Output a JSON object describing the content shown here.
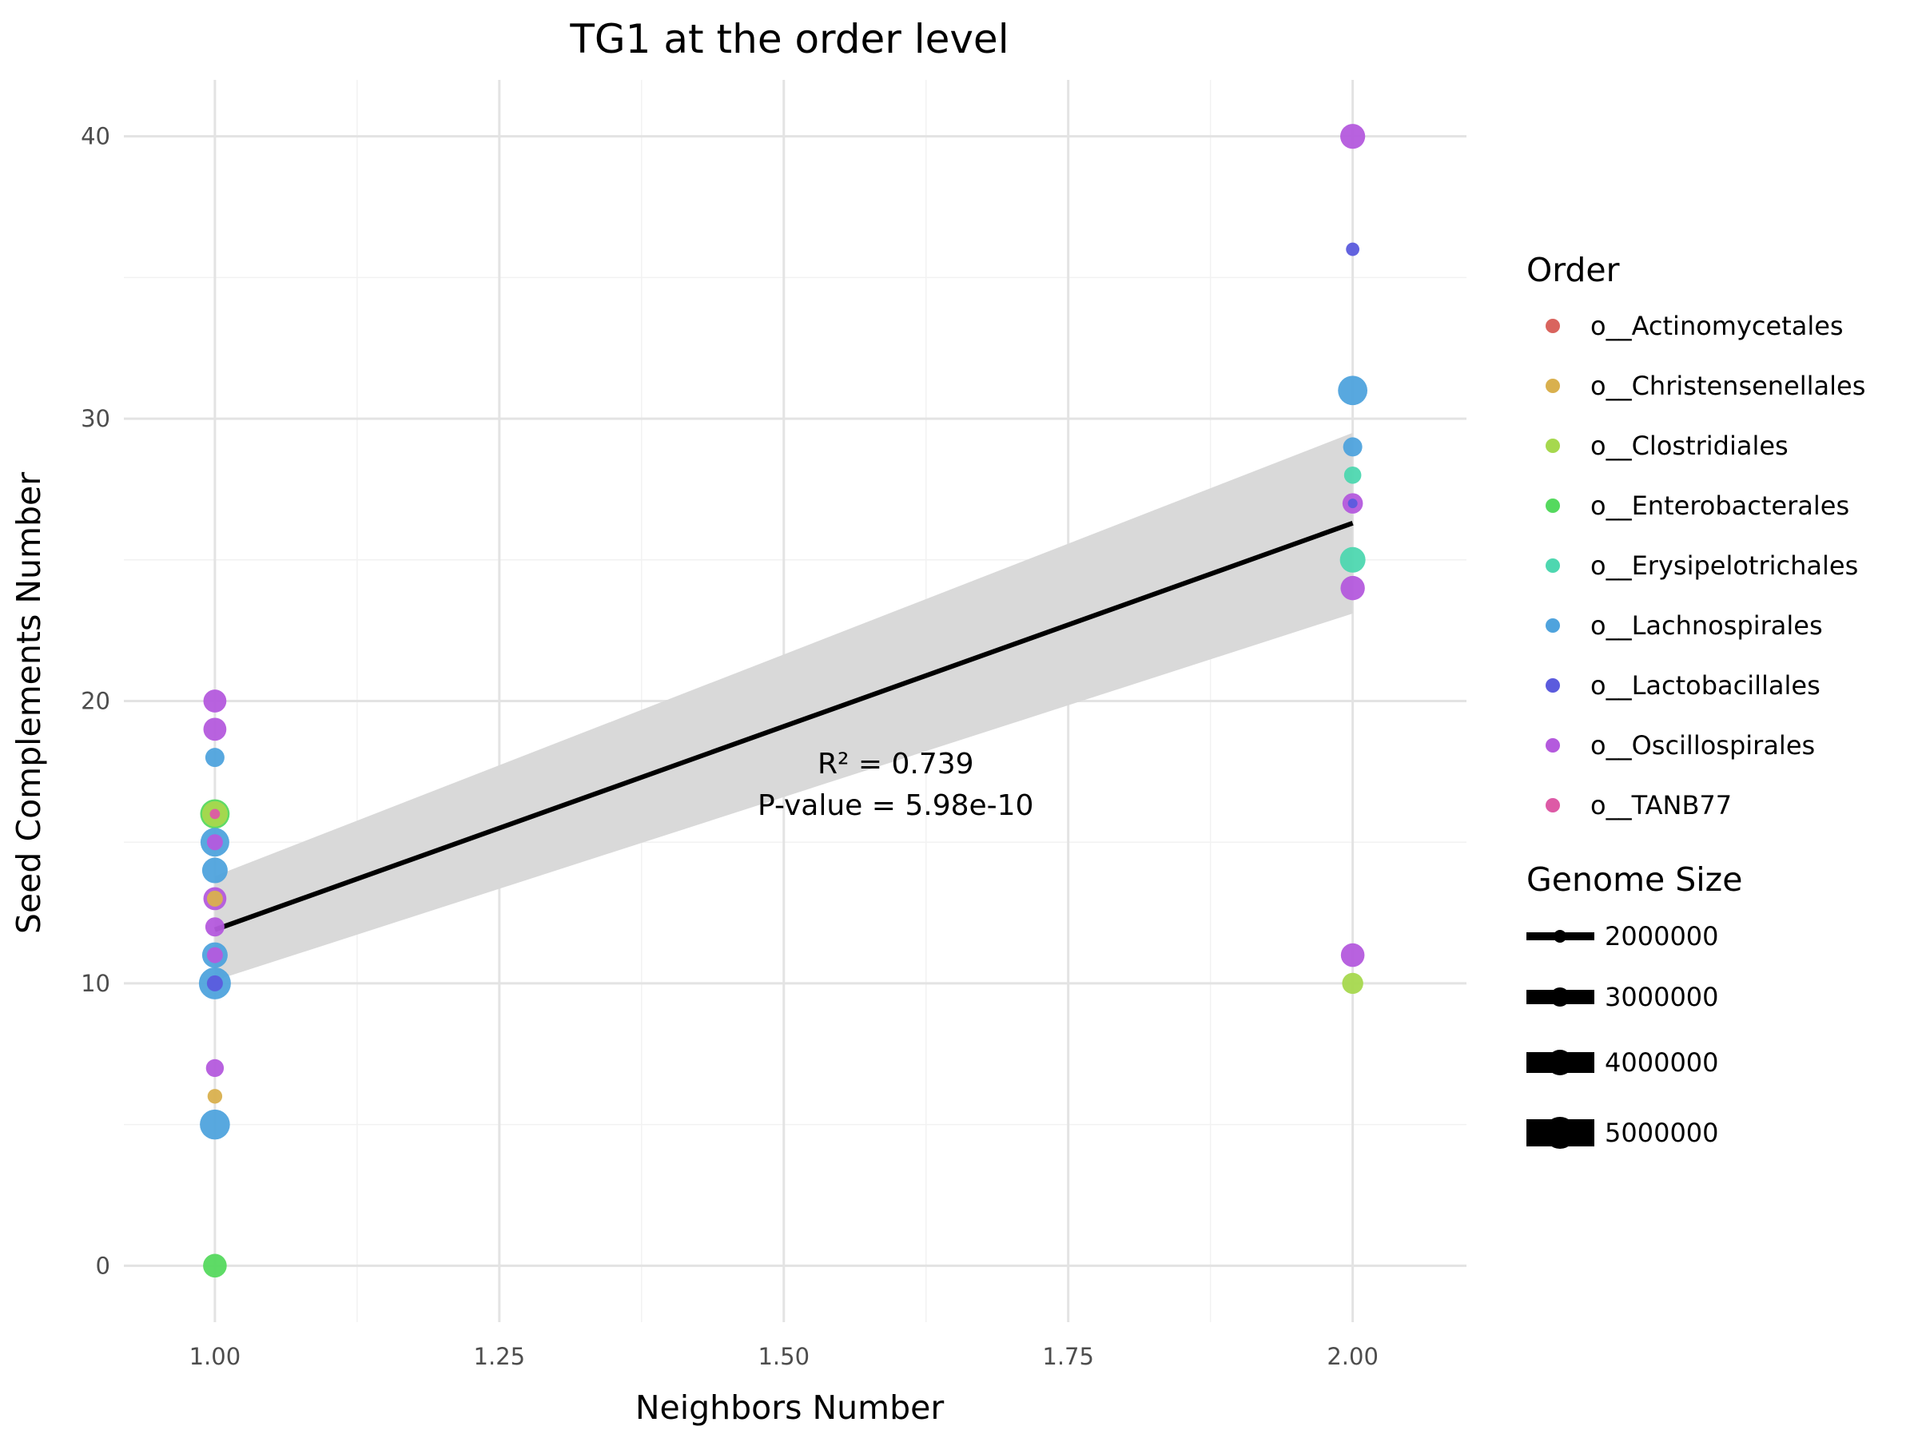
{
  "chart_data": {
    "type": "scatter",
    "title": "TG1 at the order level",
    "xlabel": "Neighbors Number",
    "ylabel": "Seed Complements Number",
    "xlim": [
      0.92,
      2.1
    ],
    "ylim": [
      -2,
      42
    ],
    "x_ticks": [
      1.0,
      1.25,
      1.5,
      1.75,
      2.0
    ],
    "x_tick_labels": [
      "1.00",
      "1.25",
      "1.50",
      "1.75",
      "2.00"
    ],
    "y_ticks": [
      0,
      10,
      20,
      30,
      40
    ],
    "y_tick_labels": [
      "0",
      "10",
      "20",
      "30",
      "40"
    ],
    "grid": true,
    "annotation": [
      "R² = 0.739",
      "P-value = 5.98e-10"
    ],
    "annotation_position": [
      1.5,
      18.0
    ],
    "regression": {
      "x": [
        1.0,
        2.0
      ],
      "y": [
        11.9,
        26.3
      ],
      "ci_lower": [
        10.1,
        23.1
      ],
      "ci_upper": [
        13.8,
        29.5
      ],
      "color": "#000000",
      "band_color": "#d9d9d9"
    },
    "legend_order": {
      "title": "Order",
      "entries": [
        {
          "label": "o__Actinomycetales",
          "color": "#d9645e"
        },
        {
          "label": "o__Christensenellales",
          "color": "#d9b04e"
        },
        {
          "label": "o__Clostridiales",
          "color": "#a6d84e"
        },
        {
          "label": "o__Enterobacterales",
          "color": "#55d95e"
        },
        {
          "label": "o__Erysipelotrichales",
          "color": "#4ed7b0"
        },
        {
          "label": "o__Lachnospirales",
          "color": "#4fa3dd"
        },
        {
          "label": "o__Lactobacillales",
          "color": "#5b5bdd"
        },
        {
          "label": "o__Oscillospirales",
          "color": "#b45add"
        },
        {
          "label": "o__TANB77",
          "color": "#dd5aa6"
        }
      ]
    },
    "legend_size": {
      "title": "Genome Size",
      "entries": [
        {
          "label": "2000000",
          "value": 2000000
        },
        {
          "label": "3000000",
          "value": 3000000
        },
        {
          "label": "4000000",
          "value": 4000000
        },
        {
          "label": "5000000",
          "value": 5000000
        }
      ]
    },
    "points": [
      {
        "x": 1.0,
        "y": 20,
        "order": "o__Oscillospirales",
        "size": 3600000
      },
      {
        "x": 1.0,
        "y": 19,
        "order": "o__Oscillospirales",
        "size": 3600000
      },
      {
        "x": 1.0,
        "y": 18,
        "order": "o__Lachnospirales",
        "size": 3000000
      },
      {
        "x": 1.0,
        "y": 16,
        "order": "o__Enterobacterales",
        "size": 4600000
      },
      {
        "x": 1.0,
        "y": 16,
        "order": "o__Clostridiales",
        "size": 4000000
      },
      {
        "x": 1.0,
        "y": 16,
        "order": "o__TANB77",
        "size": 1600000
      },
      {
        "x": 1.0,
        "y": 15,
        "order": "o__Lachnospirales",
        "size": 4500000
      },
      {
        "x": 1.0,
        "y": 15,
        "order": "o__Oscillospirales",
        "size": 2500000
      },
      {
        "x": 1.0,
        "y": 14,
        "order": "o__Lachnospirales",
        "size": 4000000
      },
      {
        "x": 1.0,
        "y": 13,
        "order": "o__Oscillospirales",
        "size": 3600000
      },
      {
        "x": 1.0,
        "y": 13,
        "order": "o__Christensenellales",
        "size": 2500000
      },
      {
        "x": 1.0,
        "y": 12,
        "order": "o__Oscillospirales",
        "size": 3000000
      },
      {
        "x": 1.0,
        "y": 11,
        "order": "o__Lachnospirales",
        "size": 4000000
      },
      {
        "x": 1.0,
        "y": 11,
        "order": "o__Oscillospirales",
        "size": 2500000
      },
      {
        "x": 1.0,
        "y": 10,
        "order": "o__Lachnospirales",
        "size": 5000000
      },
      {
        "x": 1.0,
        "y": 10,
        "order": "o__Lactobacillales",
        "size": 2500000
      },
      {
        "x": 1.0,
        "y": 7,
        "order": "o__Oscillospirales",
        "size": 2800000
      },
      {
        "x": 1.0,
        "y": 6,
        "order": "o__Christensenellales",
        "size": 2300000
      },
      {
        "x": 1.0,
        "y": 5,
        "order": "o__Lachnospirales",
        "size": 4700000
      },
      {
        "x": 1.0,
        "y": 0,
        "order": "o__Enterobacterales",
        "size": 3700000
      },
      {
        "x": 2.0,
        "y": 40,
        "order": "o__Oscillospirales",
        "size": 3900000
      },
      {
        "x": 2.0,
        "y": 36,
        "order": "o__Lactobacillales",
        "size": 2100000
      },
      {
        "x": 2.0,
        "y": 31,
        "order": "o__Lachnospirales",
        "size": 4600000
      },
      {
        "x": 2.0,
        "y": 29,
        "order": "o__Lachnospirales",
        "size": 3000000
      },
      {
        "x": 2.0,
        "y": 28,
        "order": "o__Erysipelotrichales",
        "size": 2700000
      },
      {
        "x": 2.0,
        "y": 27,
        "order": "o__Oscillospirales",
        "size": 3200000
      },
      {
        "x": 2.0,
        "y": 27,
        "order": "o__Lactobacillales",
        "size": 1500000
      },
      {
        "x": 2.0,
        "y": 25,
        "order": "o__Erysipelotrichales",
        "size": 4000000
      },
      {
        "x": 2.0,
        "y": 24,
        "order": "o__Oscillospirales",
        "size": 3800000
      },
      {
        "x": 2.0,
        "y": 11,
        "order": "o__Oscillospirales",
        "size": 3700000
      },
      {
        "x": 2.0,
        "y": 10,
        "order": "o__Clostridiales",
        "size": 3300000
      }
    ]
  }
}
